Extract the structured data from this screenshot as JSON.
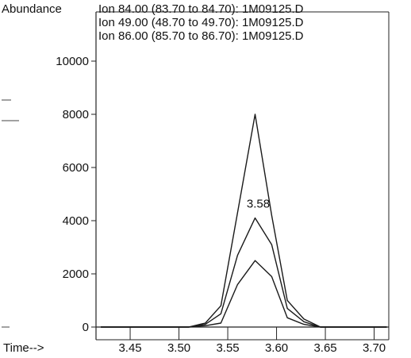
{
  "chart_data": {
    "type": "line",
    "ylabel": "Abundance",
    "xlabel": "Time-->",
    "xlim": [
      3.415,
      3.715
    ],
    "ylim": [
      0,
      10000
    ],
    "x_ticks": [
      3.45,
      3.5,
      3.55,
      3.6,
      3.65,
      3.7
    ],
    "x_tick_labels": [
      "3.45",
      "3.50",
      "3.55",
      "3.60",
      "3.65",
      "3.70"
    ],
    "y_ticks": [
      0,
      2000,
      4000,
      6000,
      8000,
      10000
    ],
    "y_tick_labels": [
      "0",
      "2000",
      "4000",
      "6000",
      "8000",
      "10000"
    ],
    "legend": [
      "Ion 84.00 (83.70 to 84.70): 1M09125.D",
      "Ion 49.00 (48.70 to 49.70): 1M09125.D",
      "Ion 86.00 (85.70 to 86.70): 1M09125.D"
    ],
    "legend_placement": "top",
    "peak_label": {
      "text": "3.58",
      "x": 3.578,
      "y": 4200
    },
    "series": [
      {
        "name": "Ion 84.00 (83.70 to 84.70): 1M09125.D",
        "x": [
          3.42,
          3.44,
          3.46,
          3.48,
          3.5,
          3.51,
          3.527,
          3.543,
          3.56,
          3.578,
          3.595,
          3.611,
          3.628,
          3.645,
          3.66,
          3.68,
          3.7,
          3.713
        ],
        "y": [
          0,
          0,
          0,
          0,
          0,
          0,
          150,
          800,
          4300,
          8000,
          4200,
          1000,
          300,
          0,
          0,
          0,
          0,
          0
        ]
      },
      {
        "name": "Ion 49.00 (48.70 to 49.70): 1M09125.D",
        "x": [
          3.42,
          3.44,
          3.46,
          3.48,
          3.5,
          3.51,
          3.527,
          3.543,
          3.56,
          3.578,
          3.595,
          3.611,
          3.628,
          3.645,
          3.66,
          3.68,
          3.7,
          3.713
        ],
        "y": [
          0,
          0,
          0,
          0,
          0,
          0,
          100,
          500,
          2700,
          4100,
          3100,
          700,
          200,
          0,
          0,
          0,
          0,
          0
        ]
      },
      {
        "name": "Ion 86.00 (85.70 to 86.70): 1M09125.D",
        "x": [
          3.42,
          3.44,
          3.46,
          3.48,
          3.5,
          3.51,
          3.527,
          3.543,
          3.56,
          3.578,
          3.595,
          3.611,
          3.628,
          3.645,
          3.66,
          3.68,
          3.7,
          3.713
        ],
        "y": [
          0,
          0,
          0,
          0,
          0,
          0,
          50,
          150,
          1600,
          2500,
          1900,
          350,
          100,
          0,
          0,
          0,
          0,
          0
        ]
      }
    ],
    "grid": false,
    "line_color": "#1a1a1a"
  }
}
